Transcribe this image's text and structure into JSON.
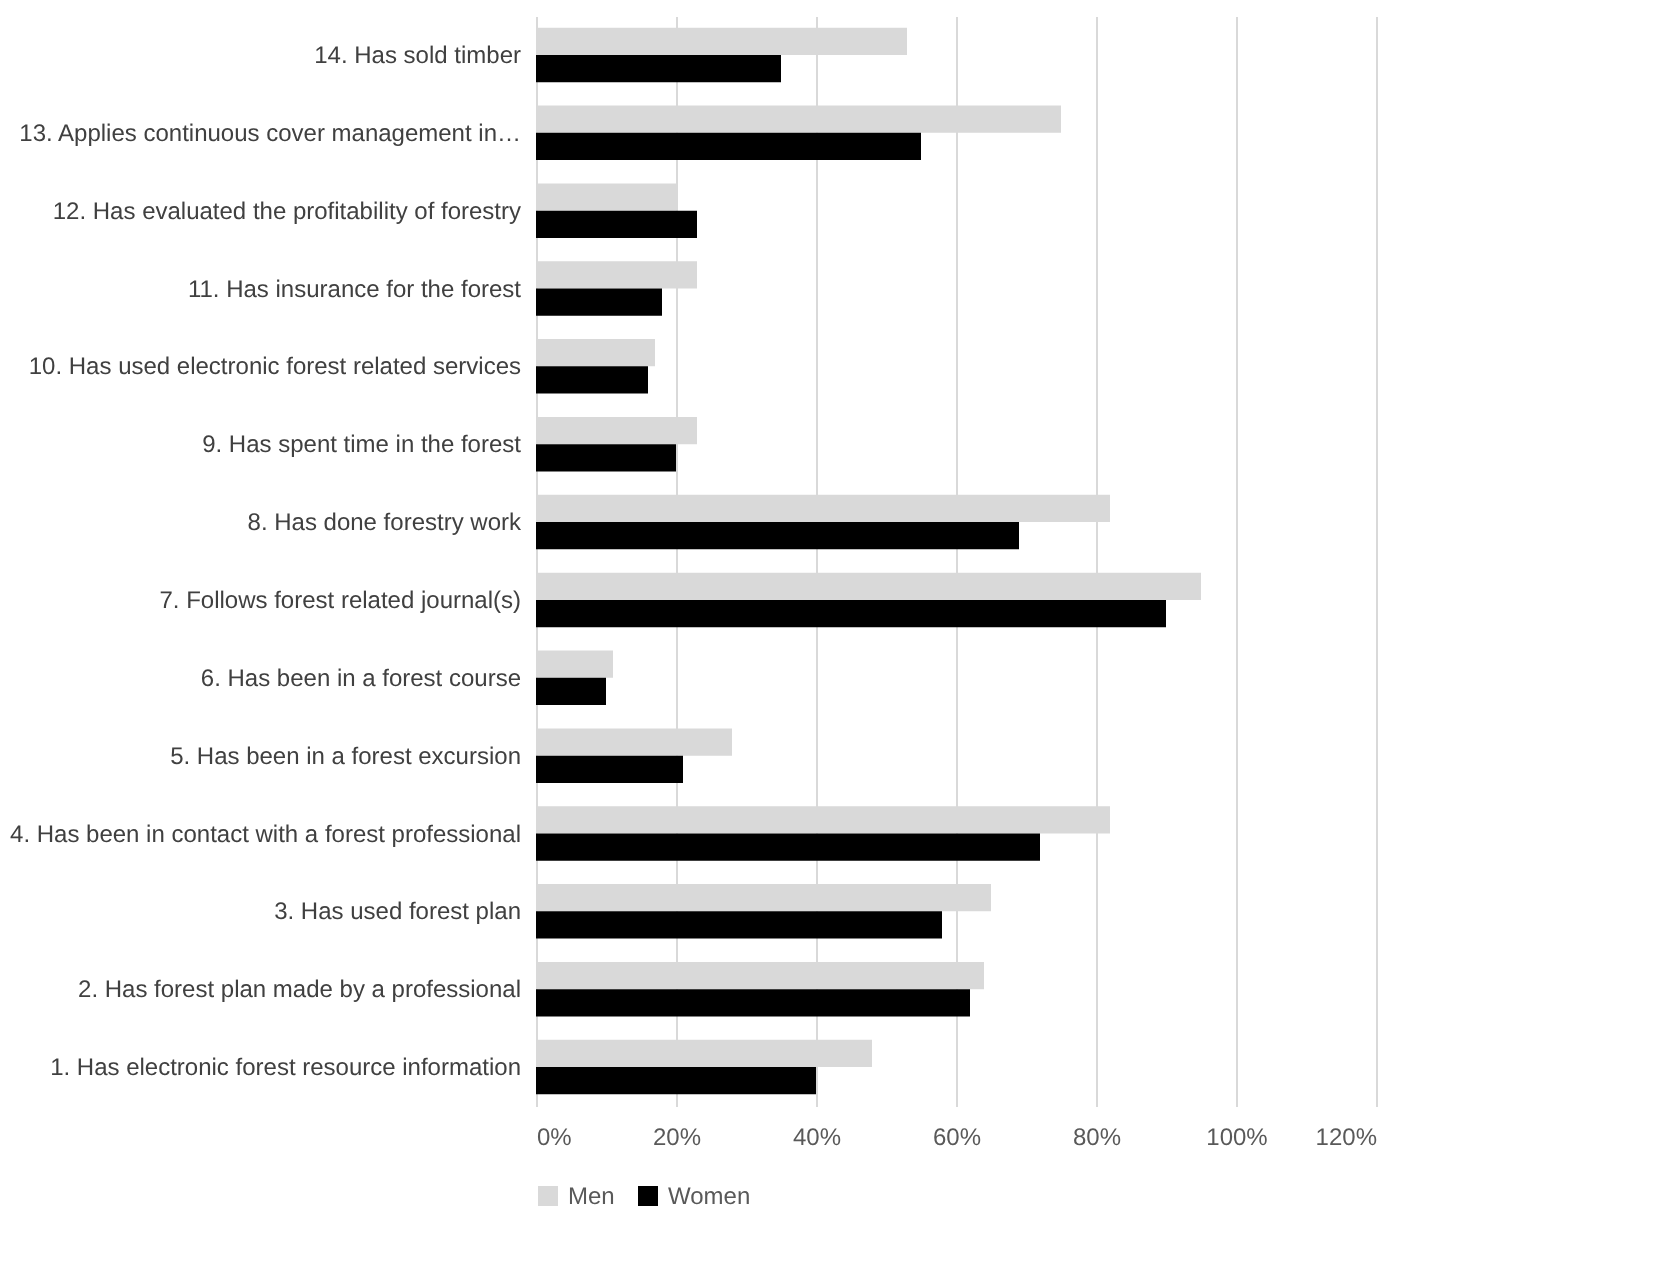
{
  "chart_data": {
    "type": "bar",
    "orientation": "horizontal",
    "categories": [
      "14. Has sold timber",
      "13. Applies continuous cover management in…",
      "12. Has evaluated the profitability of forestry",
      "11. Has insurance for the forest",
      "10. Has used electronic forest related services",
      "9. Has spent time in the forest",
      "8. Has done forestry work",
      "7. Follows forest related journal(s)",
      "6. Has been in a forest course",
      "5. Has been in a forest excursion",
      "4. Has been in contact with a forest professional",
      "3. Has used forest plan",
      "2. Has forest plan made by a professional",
      "1. Has electronic forest resource information"
    ],
    "series": [
      {
        "name": "Men",
        "color": "#d9d9d9",
        "values": [
          53,
          75,
          20,
          23,
          17,
          23,
          82,
          95,
          11,
          28,
          82,
          65,
          64,
          48
        ]
      },
      {
        "name": "Women",
        "color": "#000000",
        "values": [
          35,
          55,
          23,
          18,
          16,
          20,
          69,
          90,
          10,
          21,
          72,
          58,
          62,
          40
        ]
      }
    ],
    "xlim": [
      0,
      120
    ],
    "xticks": [
      {
        "value": 0,
        "label": "0%"
      },
      {
        "value": 20,
        "label": "20%"
      },
      {
        "value": 40,
        "label": "40%"
      },
      {
        "value": 60,
        "label": "60%"
      },
      {
        "value": 80,
        "label": "80%"
      },
      {
        "value": 100,
        "label": "100%"
      },
      {
        "value": 120,
        "label": "120%"
      }
    ],
    "grid": "x",
    "legend": "bottom"
  }
}
